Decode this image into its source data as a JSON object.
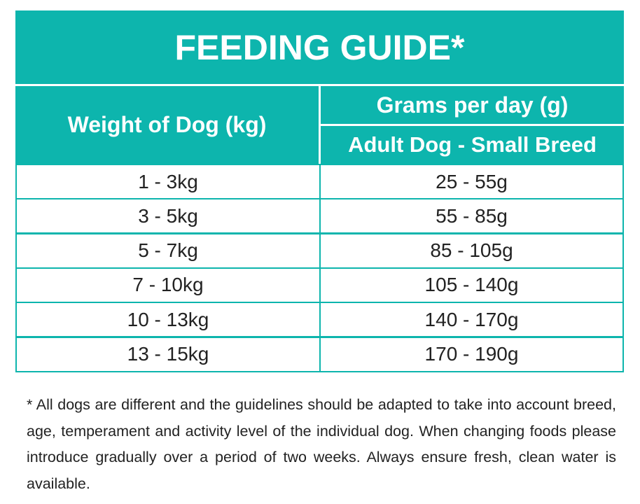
{
  "title": "FEEDING GUIDE*",
  "headers": {
    "weight": "Weight of Dog (kg)",
    "grams": "Grams per day (g)",
    "subgroup": "Adult Dog - Small Breed"
  },
  "rows": [
    {
      "weight": "1 - 3kg",
      "grams": "25 - 55g"
    },
    {
      "weight": "3 - 5kg",
      "grams": "55 - 85g"
    },
    {
      "weight": "5 - 7kg",
      "grams": "85 - 105g"
    },
    {
      "weight": "7 - 10kg",
      "grams": "105 - 140g"
    },
    {
      "weight": "10 - 13kg",
      "grams": "140 - 170g"
    },
    {
      "weight": "13 - 15kg",
      "grams": "170 - 190g"
    }
  ],
  "footnote": "* All dogs are different and the guidelines should be adapted to take into account breed, age, temperament and activity level of the individual dog. When changing foods please introduce gradually over a period of two weeks. Always ensure fresh, clean water is available.",
  "colors": {
    "accent": "#0db5ad"
  }
}
